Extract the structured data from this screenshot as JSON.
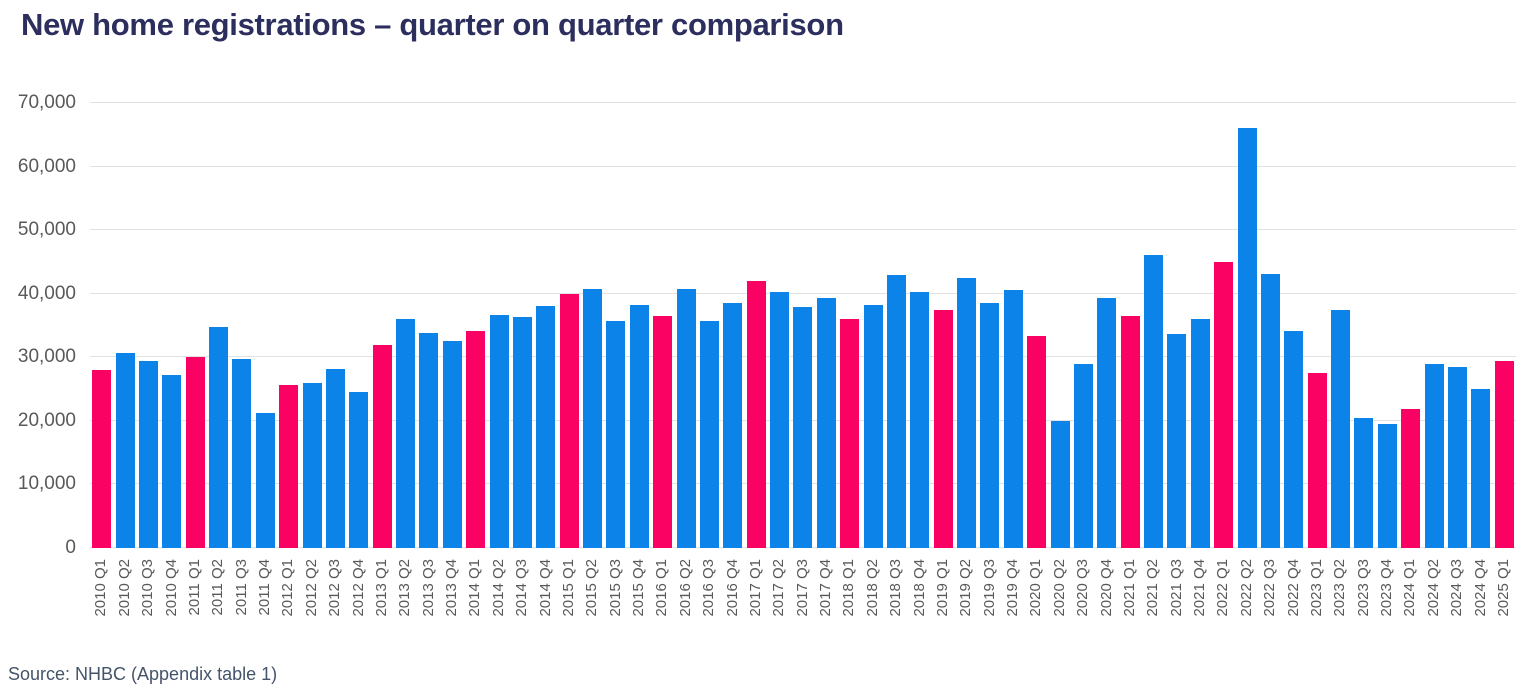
{
  "page": {
    "title": "New home registrations – quarter on quarter comparison",
    "source_note": "Source: NHBC (Appendix table 1)"
  },
  "colors": {
    "background": "#ffffff",
    "title_text": "#2c2e5e",
    "axis_text": "#58595b",
    "gridline": "#e2e2e2",
    "source_text": "#44546a",
    "bar_default": "#0b83e9",
    "bar_q1_highlight": "#fa0263"
  },
  "chart_data": {
    "type": "bar",
    "title": "New home registrations – quarter on quarter comparison",
    "xlabel": "",
    "ylabel": "",
    "ylim": [
      0,
      70000
    ],
    "ytick_step": 10000,
    "ytick_labels": [
      "0",
      "10,000",
      "20,000",
      "30,000",
      "40,000",
      "50,000",
      "60,000",
      "70,000"
    ],
    "grid": "horizontal gridlines on, light grey",
    "legend": "none",
    "highlight_rule": "Q1 quarters use bar_q1_highlight pink; all other quarters use bar_default blue",
    "categories": [
      "2010 Q1",
      "2010 Q2",
      "2010 Q3",
      "2010 Q4",
      "2011 Q1",
      "2011 Q2",
      "2011 Q3",
      "2011 Q4",
      "2012 Q1",
      "2012 Q2",
      "2012 Q3",
      "2012 Q4",
      "2013 Q1",
      "2013 Q2",
      "2013 Q3",
      "2013 Q4",
      "2014 Q1",
      "2014 Q2",
      "2014 Q3",
      "2014 Q4",
      "2015 Q1",
      "2015 Q2",
      "2015 Q3",
      "2015 Q4",
      "2016 Q1",
      "2016 Q2",
      "2016 Q3",
      "2016 Q4",
      "2017 Q1",
      "2017 Q2",
      "2017 Q3",
      "2017 Q4",
      "2018 Q1",
      "2018 Q2",
      "2018 Q3",
      "2018 Q4",
      "2019 Q1",
      "2019 Q2",
      "2019 Q3",
      "2019 Q4",
      "2020 Q1",
      "2020 Q2",
      "2020 Q3",
      "2020 Q4",
      "2021 Q1",
      "2021 Q2",
      "2021 Q3",
      "2021 Q4",
      "2022 Q1",
      "2022 Q2",
      "2022 Q3",
      "2022 Q4",
      "2023 Q1",
      "2023 Q2",
      "2023 Q3",
      "2023 Q4",
      "2024 Q1",
      "2024 Q2",
      "2024 Q3",
      "2024 Q4",
      "2025 Q1"
    ],
    "values": [
      28000,
      30700,
      29400,
      27200,
      30100,
      34800,
      29800,
      21200,
      25600,
      25900,
      28200,
      24600,
      31900,
      36000,
      33800,
      32600,
      34100,
      36700,
      36400,
      38000,
      40000,
      40700,
      35700,
      38300,
      36500,
      40700,
      35700,
      38600,
      42000,
      40200,
      37900,
      39400,
      36000,
      38300,
      43000,
      40200,
      37400,
      42500,
      38600,
      40600,
      33400,
      20000,
      29000,
      39300,
      36500,
      46100,
      33700,
      36000,
      45000,
      66000,
      43100,
      34100,
      27500,
      37400,
      20500,
      19500,
      21800,
      28900,
      28400,
      25000,
      29400
    ]
  }
}
